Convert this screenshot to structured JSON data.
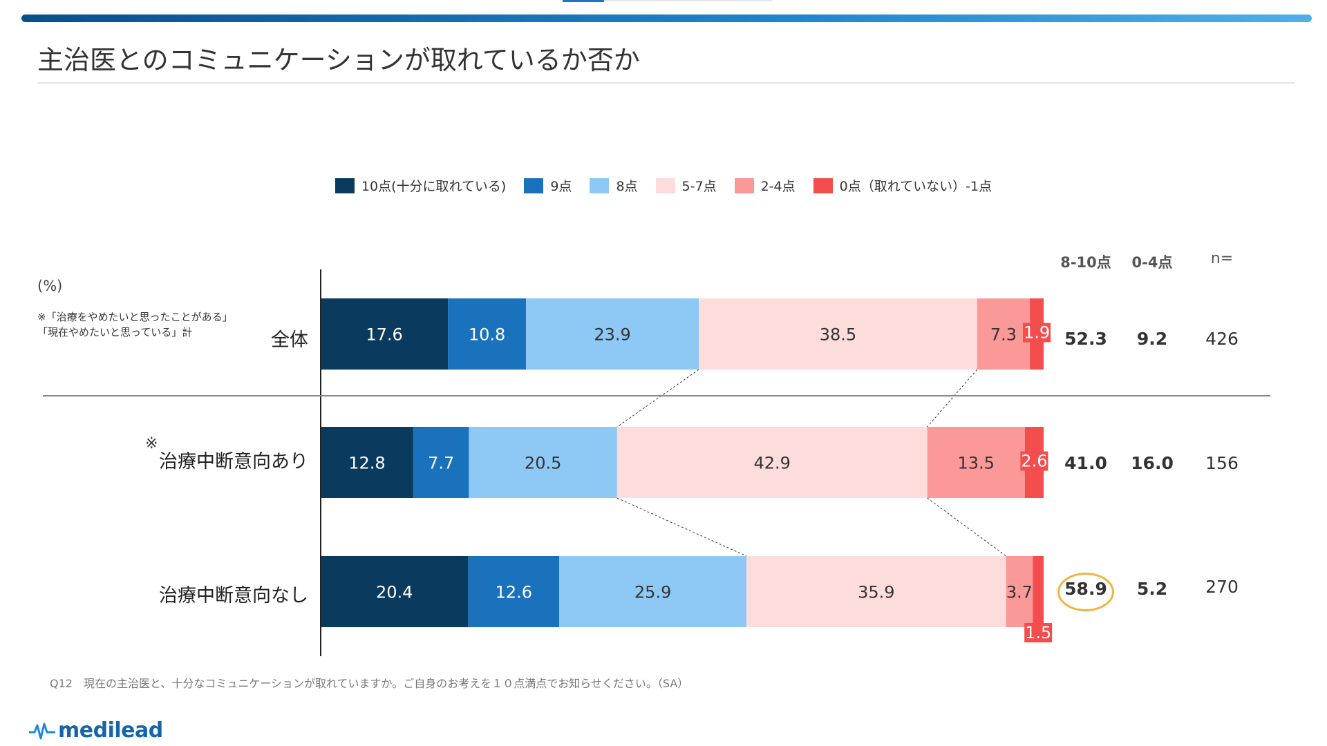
{
  "page": {
    "title": "主治医とのコミュニケーションが取れているか否か",
    "unit_label": "(%)",
    "note_lines": [
      "※「治療をやめたいと思ったことがある」",
      "「現在やめたいと思っている」計"
    ],
    "asterisk": "※",
    "footnote": "Q12　現在の主治医と、十分なコミュニケーションが取れていますか。ご自身のお考えを１０点満点でお知らせください。（SA）",
    "brand": "medilead"
  },
  "legend": [
    {
      "label": "10点(十分に取れている)",
      "color": "#0a3a5e"
    },
    {
      "label": "9点",
      "color": "#1b72bc"
    },
    {
      "label": "8点",
      "color": "#8ec8f4"
    },
    {
      "label": "5-7点",
      "color": "#fddcdc"
    },
    {
      "label": "2-4点",
      "color": "#fb9898"
    },
    {
      "label": "0点（取れていない）-1点",
      "color": "#f44d4d"
    }
  ],
  "stats_headers": {
    "top": "8-10点",
    "bottom": "0-4点",
    "n": "n="
  },
  "rows": [
    {
      "label": "全体",
      "top": "52.3",
      "bottom": "9.2",
      "n": "426"
    },
    {
      "label": "治療中断意向あり",
      "top": "41.0",
      "bottom": "16.0",
      "n": "156"
    },
    {
      "label": "治療中断意向なし",
      "top": "58.9",
      "bottom": "5.2",
      "n": "270"
    }
  ],
  "chart_data": {
    "type": "bar",
    "orientation": "horizontal",
    "stacked": true,
    "normalized": true,
    "categories": [
      "全体",
      "治療中断意向あり",
      "治療中断意向なし"
    ],
    "series": [
      {
        "name": "10点(十分に取れている)",
        "values": [
          17.6,
          12.8,
          20.4
        ],
        "color": "#0a3a5e",
        "label_color": "#ffffff"
      },
      {
        "name": "9点",
        "values": [
          10.8,
          7.7,
          12.6
        ],
        "color": "#1b72bc",
        "label_color": "#ffffff"
      },
      {
        "name": "8点",
        "values": [
          23.9,
          20.5,
          25.9
        ],
        "color": "#8ec8f4",
        "label_color": "#333333"
      },
      {
        "name": "5-7点",
        "values": [
          38.5,
          42.9,
          35.9
        ],
        "color": "#fddcdc",
        "label_color": "#333333"
      },
      {
        "name": "2-4点",
        "values": [
          7.3,
          13.5,
          3.7
        ],
        "color": "#fb9898",
        "label_color": "#333333"
      },
      {
        "name": "0点（取れていない）-1点",
        "values": [
          1.9,
          2.6,
          1.5
        ],
        "color": "#f44d4d",
        "label_color": "#ffffff"
      }
    ],
    "value_unit": "%",
    "grid": false,
    "legend_position": "top"
  }
}
